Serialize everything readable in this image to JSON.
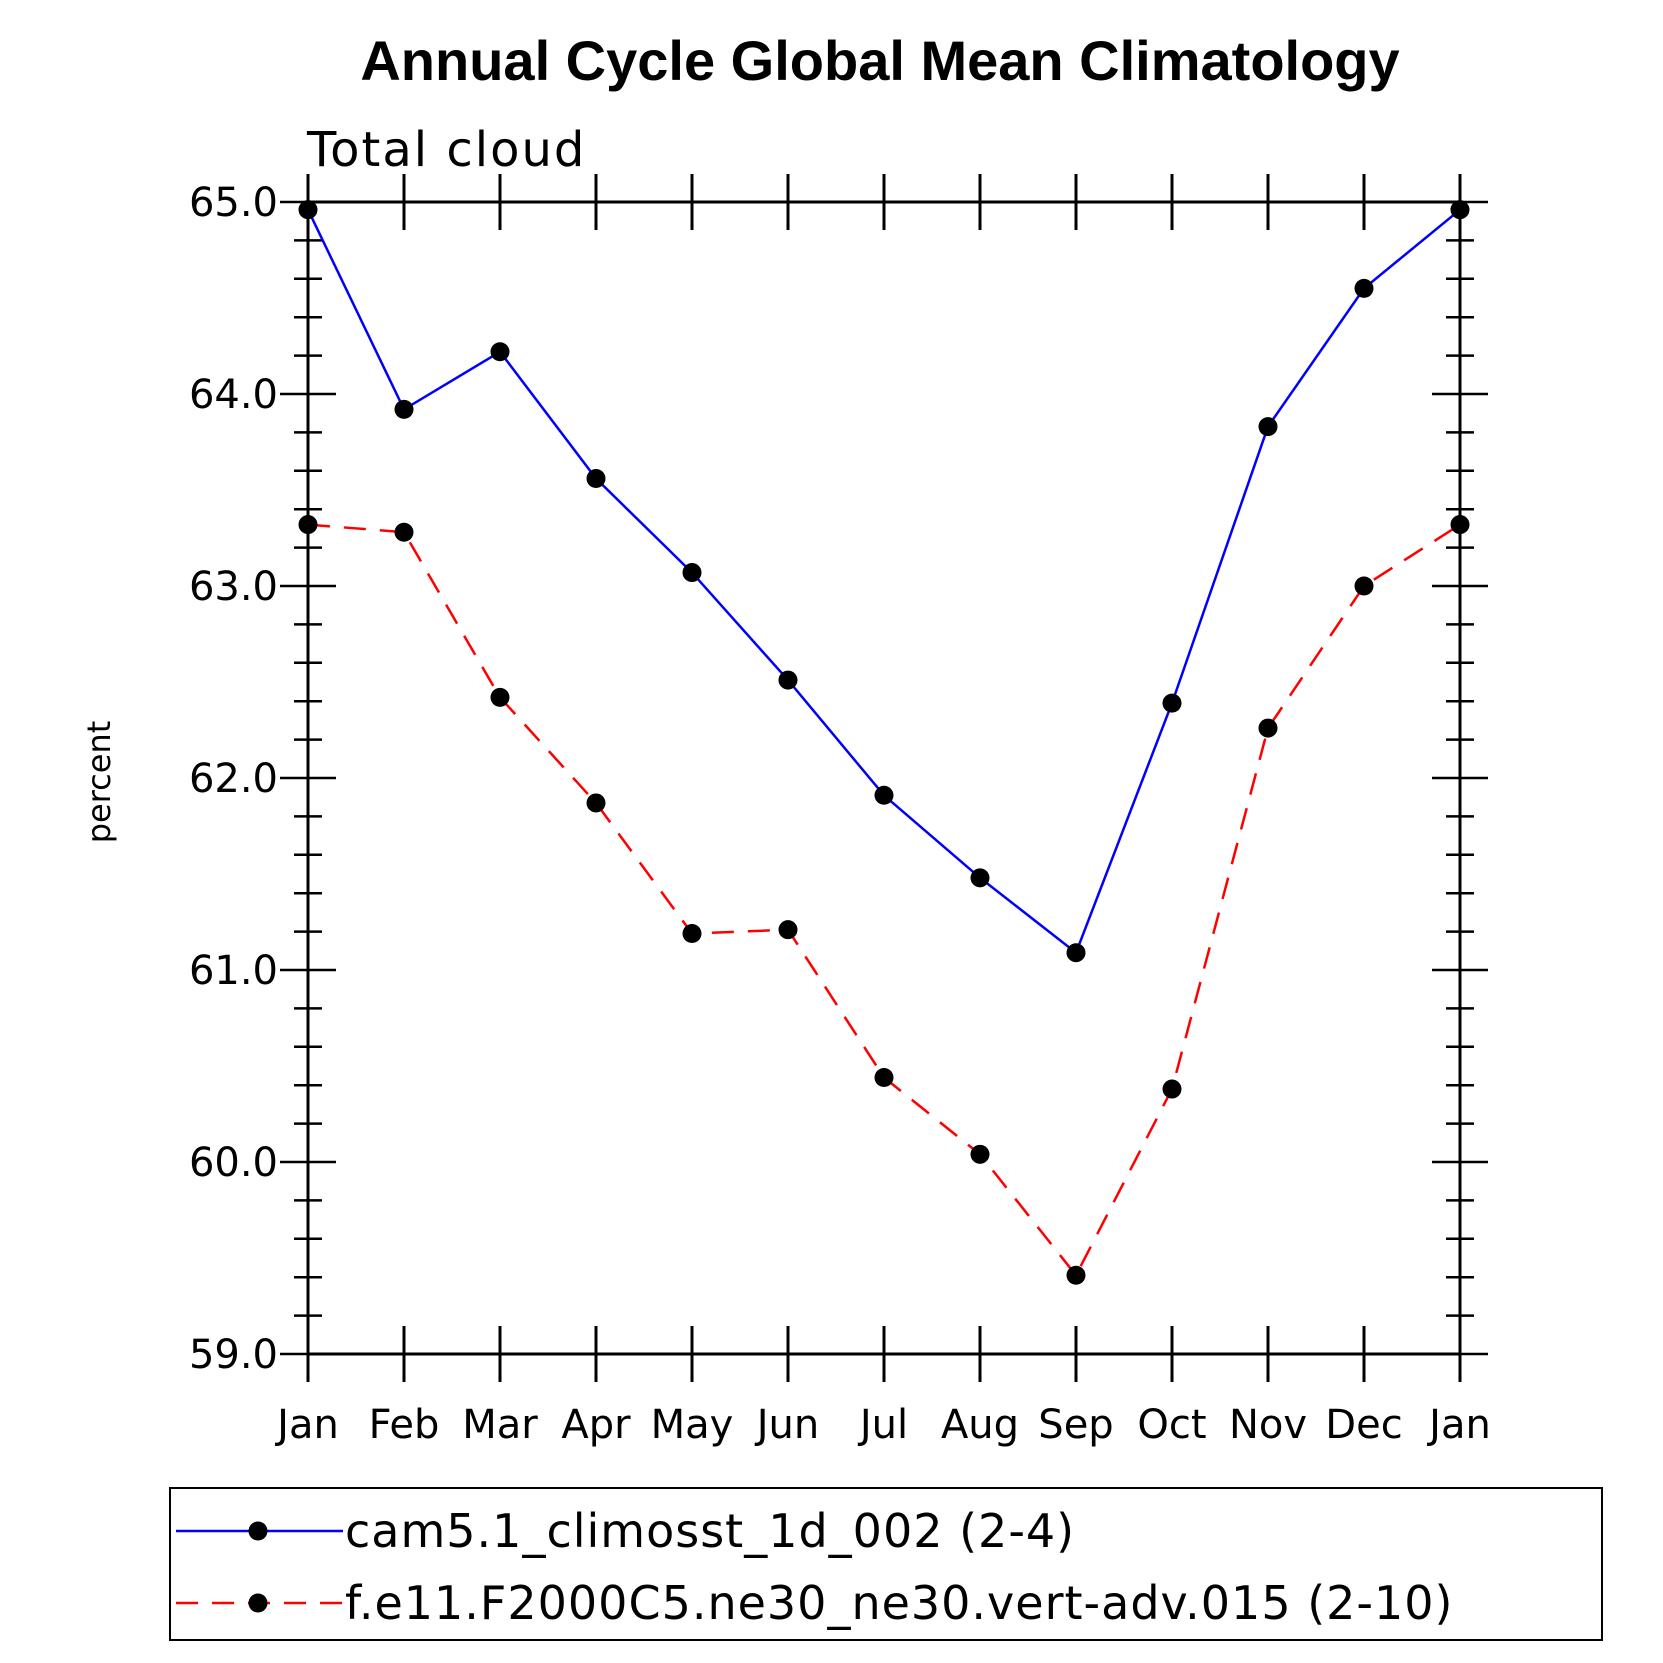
{
  "chart_data": {
    "type": "line",
    "title": "Annual Cycle Global Mean Climatology",
    "subtitle": "Total cloud",
    "xlabel": "",
    "ylabel": "percent",
    "categories": [
      "Jan",
      "Feb",
      "Mar",
      "Apr",
      "May",
      "Jun",
      "Jul",
      "Aug",
      "Sep",
      "Oct",
      "Nov",
      "Dec",
      "Jan"
    ],
    "ylim": [
      59.0,
      65.0
    ],
    "yticks": [
      "59.0",
      "60.0",
      "61.0",
      "62.0",
      "63.0",
      "64.0",
      "65.0"
    ],
    "grid": false,
    "legend_position": "bottom",
    "series": [
      {
        "name": "cam5.1_climosst_1d_002 (2-4)",
        "color": "#0000ff",
        "style": "solid",
        "marker": "dot",
        "values": [
          64.96,
          63.92,
          64.22,
          63.56,
          63.07,
          62.51,
          61.91,
          61.48,
          61.09,
          62.39,
          63.83,
          64.55,
          64.96
        ]
      },
      {
        "name": "f.e11.F2000C5.ne30_ne30.vert-adv.015 (2-10)",
        "color": "#ff0000",
        "style": "dashed",
        "marker": "dot",
        "values": [
          63.32,
          63.28,
          62.42,
          61.87,
          61.19,
          61.21,
          60.44,
          60.04,
          59.41,
          60.38,
          62.26,
          63.0,
          63.32
        ]
      }
    ]
  }
}
